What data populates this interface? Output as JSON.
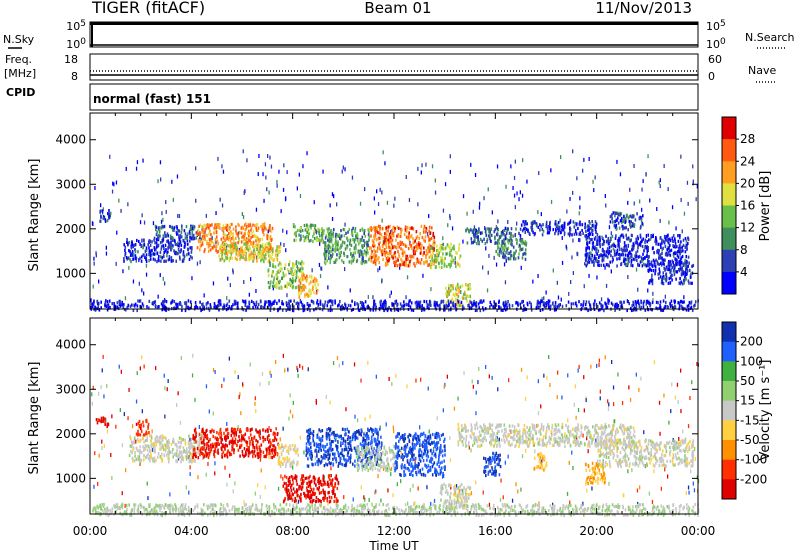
{
  "header": {
    "title": "TIGER (fitACF)",
    "beam": "Beam 01",
    "date": "11/Nov/2013"
  },
  "top_panels": {
    "nsky": {
      "label": "N.Sky",
      "ticks": [
        "10^5",
        "10^0"
      ],
      "right_label": "N.Search",
      "right_ticks": [
        "10^5",
        "10^0"
      ]
    },
    "freq": {
      "label_line1": "Freq.",
      "label_line2": "[MHz]",
      "ticks": [
        "18",
        "8"
      ],
      "right_label": "Nave",
      "right_ticks": [
        "60",
        "0"
      ]
    },
    "cpid": {
      "label": "CPID",
      "value": "normal (fast) 151"
    }
  },
  "colors": {
    "power_scale": [
      "#0000ff",
      "#2c3fb4",
      "#3f8f5c",
      "#6abf4a",
      "#e0e040",
      "#ff9e20",
      "#ff5a10",
      "#e00000"
    ],
    "velocity_scale": [
      "#1030b0",
      "#2060ff",
      "#40b040",
      "#90d070",
      "#c8c8c8",
      "#ffd040",
      "#ff9000",
      "#ff3000",
      "#e00000"
    ]
  },
  "chart_data": [
    {
      "type": "heatmap",
      "panel": "power",
      "title": "",
      "ylabel": "Slant Range [km]",
      "xlabel": "",
      "x_ticks": [
        "00:00",
        "04:00",
        "08:00",
        "12:00",
        "16:00",
        "20:00",
        "00:00"
      ],
      "y_ticks": [
        "1000",
        "2000",
        "3000",
        "4000"
      ],
      "ylim": [
        200,
        4600
      ],
      "xlim": [
        0,
        24
      ],
      "colorbar": {
        "label": "Power [dB]",
        "ticks": [
          "4",
          "8",
          "12",
          "16",
          "20",
          "24",
          "28"
        ],
        "range": [
          0,
          30
        ]
      },
      "regions": [
        {
          "t0": 0.3,
          "t1": 0.8,
          "r0": 2200,
          "r1": 2450,
          "level": 0.12
        },
        {
          "t0": 1.3,
          "t1": 4.0,
          "r0": 1300,
          "r1": 1800,
          "level": 0.15
        },
        {
          "t0": 2.5,
          "t1": 4.5,
          "r0": 1800,
          "r1": 2100,
          "level": 0.2
        },
        {
          "t0": 4.2,
          "t1": 7.2,
          "r0": 1450,
          "r1": 2150,
          "level": 0.72
        },
        {
          "t0": 5.0,
          "t1": 7.5,
          "r0": 1300,
          "r1": 1700,
          "level": 0.55
        },
        {
          "t0": 7.0,
          "t1": 8.4,
          "r0": 700,
          "r1": 1300,
          "level": 0.45
        },
        {
          "t0": 8.2,
          "t1": 9.0,
          "r0": 500,
          "r1": 1000,
          "level": 0.68
        },
        {
          "t0": 8.0,
          "t1": 9.2,
          "r0": 1750,
          "r1": 2150,
          "level": 0.4
        },
        {
          "t0": 9.2,
          "t1": 11.0,
          "r0": 1250,
          "r1": 2050,
          "level": 0.35
        },
        {
          "t0": 11.0,
          "t1": 13.6,
          "r0": 1200,
          "r1": 2100,
          "level": 0.78
        },
        {
          "t0": 13.4,
          "t1": 14.6,
          "r0": 1150,
          "r1": 1700,
          "level": 0.5
        },
        {
          "t0": 14.0,
          "t1": 15.0,
          "r0": 300,
          "r1": 800,
          "level": 0.55
        },
        {
          "t0": 14.8,
          "t1": 17.0,
          "r0": 1700,
          "r1": 2050,
          "level": 0.22
        },
        {
          "t0": 16.0,
          "t1": 17.2,
          "r0": 1350,
          "r1": 1800,
          "level": 0.3
        },
        {
          "t0": 17.0,
          "t1": 20.0,
          "r0": 1900,
          "r1": 2200,
          "level": 0.12
        },
        {
          "t0": 19.5,
          "t1": 23.6,
          "r0": 1200,
          "r1": 1900,
          "level": 0.12
        },
        {
          "t0": 20.5,
          "t1": 21.8,
          "r0": 2000,
          "r1": 2400,
          "level": 0.2
        },
        {
          "t0": 0.0,
          "t1": 24.0,
          "r0": 200,
          "r1": 420,
          "level": 0.1
        },
        {
          "t0": 22.0,
          "t1": 23.8,
          "r0": 800,
          "r1": 1300,
          "level": 0.12
        }
      ]
    },
    {
      "type": "heatmap",
      "panel": "velocity",
      "title": "",
      "ylabel": "Slant Range [km]",
      "xlabel": "Time UT",
      "x_ticks": [
        "00:00",
        "04:00",
        "08:00",
        "12:00",
        "16:00",
        "20:00",
        "00:00"
      ],
      "y_ticks": [
        "1000",
        "2000",
        "3000",
        "4000"
      ],
      "ylim": [
        200,
        4600
      ],
      "xlim": [
        0,
        24
      ],
      "colorbar": {
        "label": "Velocity [m s⁻¹]",
        "ticks": [
          "200",
          "100",
          "50",
          "15",
          "-15",
          "-50",
          "-100",
          "-200"
        ],
        "range": [
          -250,
          250
        ]
      },
      "regions": [
        {
          "t0": 1.8,
          "t1": 2.3,
          "r0": 2000,
          "r1": 2350,
          "level": -180
        },
        {
          "t0": 1.5,
          "t1": 4.5,
          "r0": 1400,
          "r1": 2000,
          "level": 0
        },
        {
          "t0": 4.0,
          "t1": 7.4,
          "r0": 1500,
          "r1": 2150,
          "level": -200
        },
        {
          "t0": 7.4,
          "t1": 8.2,
          "r0": 1300,
          "r1": 1800,
          "level": -40
        },
        {
          "t0": 7.6,
          "t1": 9.8,
          "r0": 500,
          "r1": 1100,
          "level": -210
        },
        {
          "t0": 8.5,
          "t1": 11.5,
          "r0": 1300,
          "r1": 2150,
          "level": 190
        },
        {
          "t0": 10.5,
          "t1": 12.0,
          "r0": 1200,
          "r1": 1750,
          "level": 20
        },
        {
          "t0": 12.0,
          "t1": 14.0,
          "r0": 1100,
          "r1": 2050,
          "level": 180
        },
        {
          "t0": 13.8,
          "t1": 15.0,
          "r0": 350,
          "r1": 900,
          "level": 0
        },
        {
          "t0": 14.5,
          "t1": 21.5,
          "r0": 1750,
          "r1": 2250,
          "level": 0
        },
        {
          "t0": 15.5,
          "t1": 16.2,
          "r0": 1100,
          "r1": 1600,
          "level": 200
        },
        {
          "t0": 17.5,
          "t1": 18.0,
          "r0": 1200,
          "r1": 1600,
          "level": -80
        },
        {
          "t0": 19.5,
          "t1": 20.3,
          "r0": 900,
          "r1": 1400,
          "level": -90
        },
        {
          "t0": 20.0,
          "t1": 23.8,
          "r0": 1300,
          "r1": 1900,
          "level": 0
        },
        {
          "t0": 0.2,
          "t1": 0.7,
          "r0": 2200,
          "r1": 2400,
          "level": -200
        },
        {
          "t0": 0.0,
          "t1": 24.0,
          "r0": 200,
          "r1": 450,
          "level": 20
        }
      ]
    }
  ]
}
